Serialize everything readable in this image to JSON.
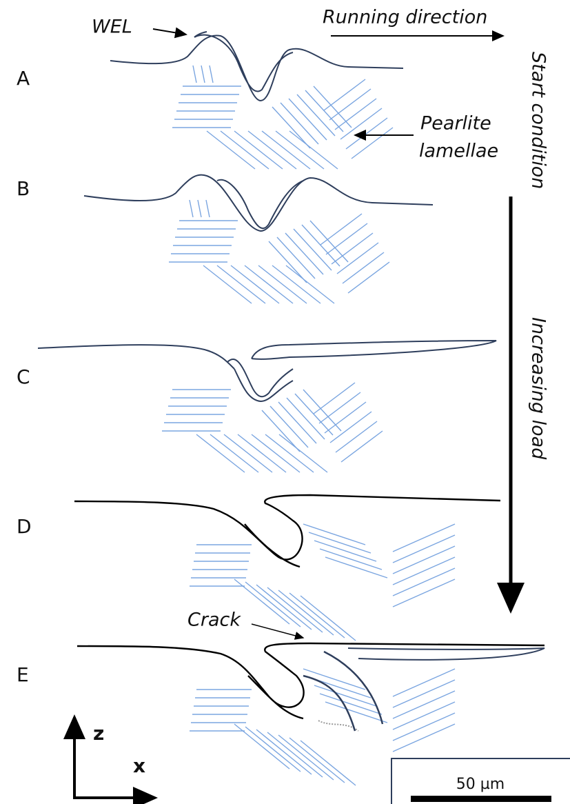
{
  "annotations": {
    "wel": "WEL",
    "running_direction": "Running direction",
    "pearlite": "Pearlite",
    "lamellae": "lamellae",
    "start_condition": "Start condition",
    "increasing_load": "Increasing load",
    "crack": "Crack"
  },
  "panels": [
    {
      "label": "A"
    },
    {
      "label": "B"
    },
    {
      "label": "C"
    },
    {
      "label": "D"
    },
    {
      "label": "E"
    }
  ],
  "axes": {
    "z": "z",
    "x": "x"
  },
  "scale_bar": "50 µm"
}
